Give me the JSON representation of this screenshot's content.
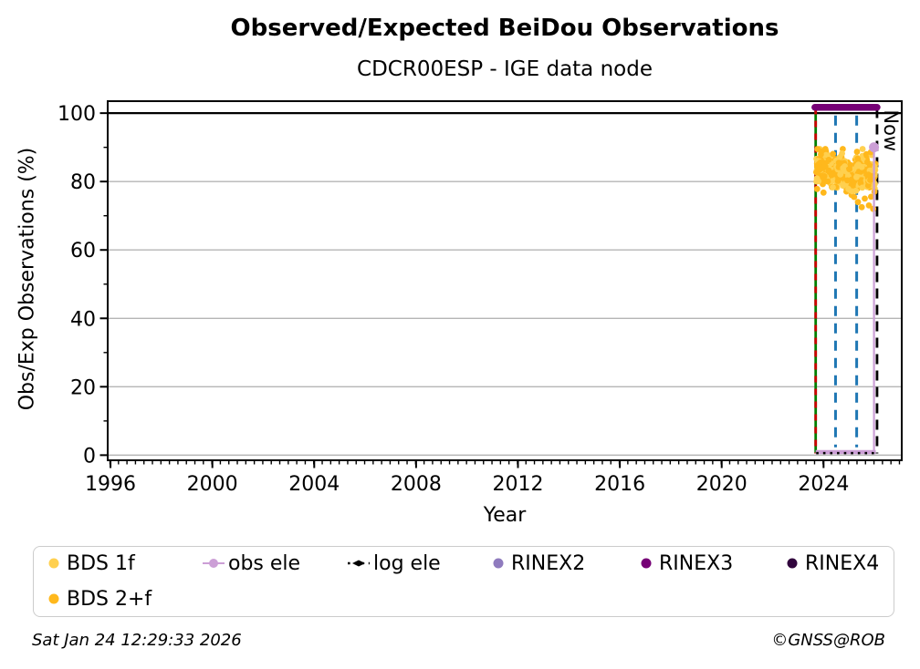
{
  "title": "Observed/Expected BeiDou Observations",
  "subtitle": "CDCR00ESP - IGE data node",
  "footer": {
    "timestamp": "Sat Jan 24 12:29:33 2026",
    "copyright": "©GNSS@ROB"
  },
  "chart_data": {
    "type": "scatter",
    "title": "Observed/Expected BeiDou Observations",
    "subtitle": "CDCR00ESP - IGE data node",
    "xlabel": "Year",
    "ylabel": "Obs/Exp Observations (%)",
    "xlim": [
      1995.89,
      2027.07
    ],
    "ylim": [
      -1.5,
      103.5
    ],
    "xticks": [
      1996,
      2000,
      2004,
      2008,
      2012,
      2016,
      2020,
      2024
    ],
    "yticks": [
      0,
      20,
      40,
      60,
      80,
      100
    ],
    "x_minor_step": 0.33333,
    "y_minor_step": 10,
    "grid": {
      "horizontal": true,
      "vertical": false,
      "color": "#b5b5b5"
    },
    "reference_line_100": {
      "y": 100,
      "color": "#000000"
    },
    "now_line": {
      "x": 2026.1,
      "label": "Now",
      "color": "#000000",
      "style": "dashed",
      "y0": 0.5,
      "y1": 101.5
    },
    "event_lines": [
      {
        "name": "data-start-line",
        "x": 2023.69,
        "color": "#007f00",
        "overlay_color": "#cc0000",
        "style": "solid+red-dashed",
        "y0": 0.5,
        "y1": 101.5
      },
      {
        "name": "event-line-1",
        "x": 2024.47,
        "color": "#1f77b4",
        "style": "dashed",
        "y0": 2.3,
        "y1": 99.3
      },
      {
        "name": "event-line-2",
        "x": 2025.3,
        "color": "#1f77b4",
        "style": "dashed",
        "y0": 2.3,
        "y1": 99.3
      }
    ],
    "rinex3_span": {
      "label": "RINEX3",
      "y": 101.7,
      "x0": 2023.66,
      "x1": 2026.1,
      "color": "#760076",
      "linewidth": 7.5
    },
    "obs_ele": {
      "label": "obs ele",
      "color": "#cc9fd6",
      "baseline_y": 0.9,
      "x0": 2023.69,
      "x1": 2026.05,
      "spike_x": 2025.98,
      "spike_y": 90
    },
    "log_ele": {
      "label": "log ele",
      "color": "#000000",
      "y": 0.6,
      "x0": 2023.71,
      "x1": 2026.02,
      "style": "dotted"
    },
    "bds_scatter": {
      "x_range": [
        2023.7,
        2026.04
      ],
      "y_mean_trend": [
        [
          2023.7,
          84.0
        ],
        [
          2023.85,
          85.0
        ],
        [
          2024.0,
          83.5
        ],
        [
          2024.2,
          84.5
        ],
        [
          2024.45,
          82.5
        ],
        [
          2024.7,
          84.0
        ],
        [
          2024.95,
          82.0
        ],
        [
          2025.15,
          80.5
        ],
        [
          2025.35,
          82.0
        ],
        [
          2025.6,
          83.0
        ],
        [
          2025.85,
          82.5
        ],
        [
          2026.04,
          83.0
        ]
      ],
      "y_spread": 2.3,
      "y_clamp": [
        71.5,
        89.5
      ],
      "n_points": 520,
      "outliers": [
        [
          2025.2,
          75.5
        ],
        [
          2025.35,
          74.0
        ],
        [
          2025.5,
          72.5
        ],
        [
          2025.62,
          75.0
        ],
        [
          2025.78,
          73.0
        ],
        [
          2025.95,
          72.0
        ],
        [
          2026.0,
          77.0
        ]
      ],
      "series_colors": {
        "bds_1f": "#ffd04f",
        "bds_2f": "#ffb81c"
      }
    },
    "legend": [
      {
        "label": "BDS 1f",
        "marker": "dot",
        "color": "#ffd04f"
      },
      {
        "label": "obs ele",
        "marker": "line-dot",
        "color": "#cc9fd6"
      },
      {
        "label": "log ele",
        "marker": "dotted-diamond",
        "color": "#000000"
      },
      {
        "label": "RINEX2",
        "marker": "dot",
        "color": "#8f7bbe"
      },
      {
        "label": "RINEX3",
        "marker": "dot",
        "color": "#760076"
      },
      {
        "label": "RINEX4",
        "marker": "dot",
        "color": "#31053d"
      },
      {
        "label": "BDS 2+f",
        "marker": "dot",
        "color": "#ffb81c"
      }
    ]
  }
}
